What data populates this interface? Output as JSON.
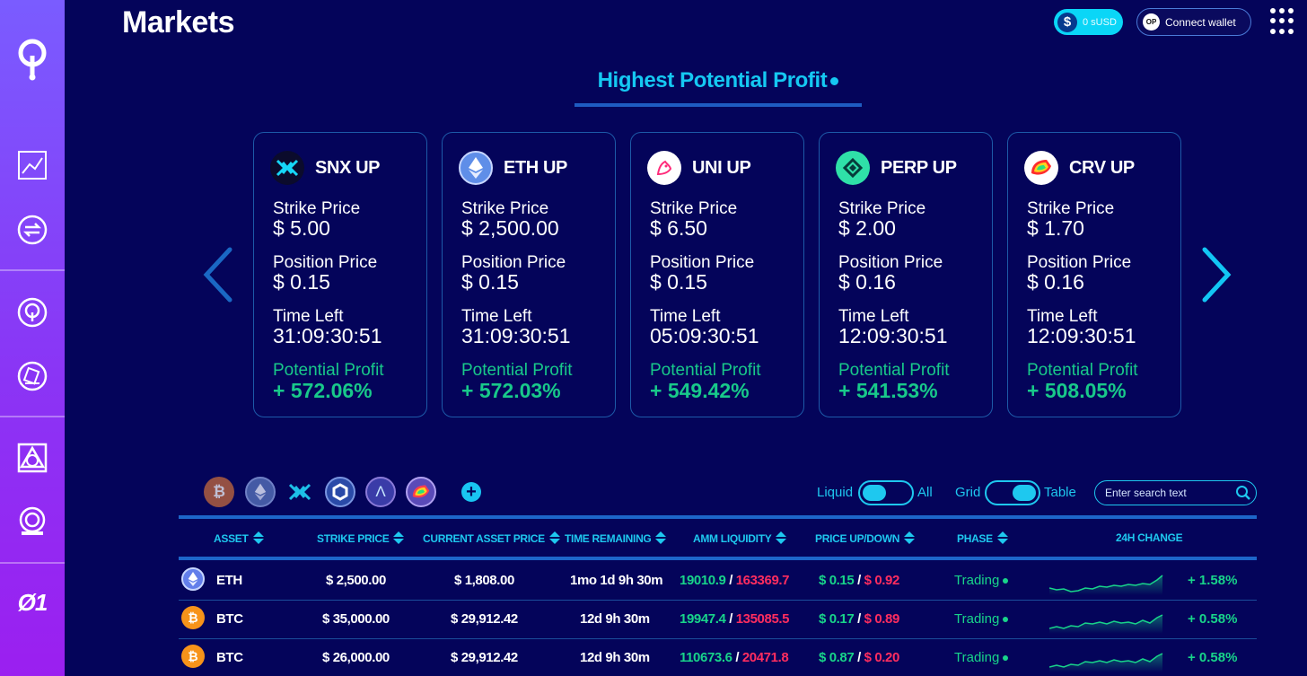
{
  "header": {
    "title": "Markets",
    "balance": "0 sUSD",
    "connect_wallet": "Connect wallet",
    "op_badge": "OP"
  },
  "sidebar": {
    "items": [
      "markets-chart-icon",
      "swap-icon",
      "overtime-icon",
      "quests-icon",
      "thales-royale-icon",
      "exotic-icon"
    ],
    "bottom_text": "Ø1"
  },
  "highlight": {
    "heading": "Highest Potential Profit",
    "cards": [
      {
        "title": "SNX UP",
        "strike_label": "Strike Price",
        "strike": "$ 5.00",
        "position_label": "Position Price",
        "position": "$ 0.15",
        "time_label": "Time Left",
        "time": "31:09:30:51",
        "profit_label": "Potential Profit",
        "profit": "+ 572.06%",
        "icon": "snx-icon"
      },
      {
        "title": "ETH UP",
        "strike_label": "Strike Price",
        "strike": "$ 2,500.00",
        "position_label": "Position Price",
        "position": "$ 0.15",
        "time_label": "Time Left",
        "time": "31:09:30:51",
        "profit_label": "Potential Profit",
        "profit": "+ 572.03%",
        "icon": "eth-icon"
      },
      {
        "title": "UNI UP",
        "strike_label": "Strike Price",
        "strike": "$ 6.50",
        "position_label": "Position Price",
        "position": "$ 0.15",
        "time_label": "Time Left",
        "time": "05:09:30:51",
        "profit_label": "Potential Profit",
        "profit": "+ 549.42%",
        "icon": "uni-icon"
      },
      {
        "title": "PERP UP",
        "strike_label": "Strike Price",
        "strike": "$ 2.00",
        "position_label": "Position Price",
        "position": "$ 0.16",
        "time_label": "Time Left",
        "time": "12:09:30:51",
        "profit_label": "Potential Profit",
        "profit": "+ 541.53%",
        "icon": "perp-icon"
      },
      {
        "title": "CRV UP",
        "strike_label": "Strike Price",
        "strike": "$ 1.70",
        "position_label": "Position Price",
        "position": "$ 0.16",
        "time_label": "Time Left",
        "time": "12:09:30:51",
        "profit_label": "Potential Profit",
        "profit": "+ 508.05%",
        "icon": "crv-icon"
      }
    ]
  },
  "filters": {
    "assets": [
      "btc-icon",
      "eth-icon",
      "snx-icon",
      "link-icon",
      "aave-icon",
      "crv-icon"
    ],
    "liquid_label": "Liquid",
    "all_label": "All",
    "grid_label": "Grid",
    "table_label": "Table",
    "search_placeholder": "Enter search text"
  },
  "table": {
    "columns": [
      "ASSET",
      "STRIKE PRICE",
      "CURRENT ASSET PRICE",
      "TIME REMAINING",
      "AMM LIQUIDITY",
      "PRICE UP/DOWN",
      "PHASE",
      "24H CHANGE"
    ],
    "rows": [
      {
        "asset": "ETH",
        "strike": "$ 2,500.00",
        "current": "$ 1,808.00",
        "time": "1mo 1d 9h 30m",
        "liq_up": "19010.9",
        "liq_down": "163369.7",
        "price_up": "$ 0.15",
        "price_down": "$ 0.92",
        "phase": "Trading",
        "change": "+ 1.58%",
        "icon": "eth-icon"
      },
      {
        "asset": "BTC",
        "strike": "$ 35,000.00",
        "current": "$ 29,912.42",
        "time": "12d 9h 30m",
        "liq_up": "19947.4",
        "liq_down": "135085.5",
        "price_up": "$ 0.17",
        "price_down": "$ 0.89",
        "phase": "Trading",
        "change": "+ 0.58%",
        "icon": "btc-icon"
      },
      {
        "asset": "BTC",
        "strike": "$ 26,000.00",
        "current": "$ 29,912.42",
        "time": "12d 9h 30m",
        "liq_up": "110673.6",
        "liq_down": "20471.8",
        "price_up": "$ 0.87",
        "price_down": "$ 0.20",
        "phase": "Trading",
        "change": "+ 0.58%",
        "icon": "btc-icon"
      }
    ]
  },
  "colors": {
    "background": "#04045a",
    "accent": "#1ec8ef",
    "green": "#18d48a",
    "red": "#ff2d5f"
  }
}
